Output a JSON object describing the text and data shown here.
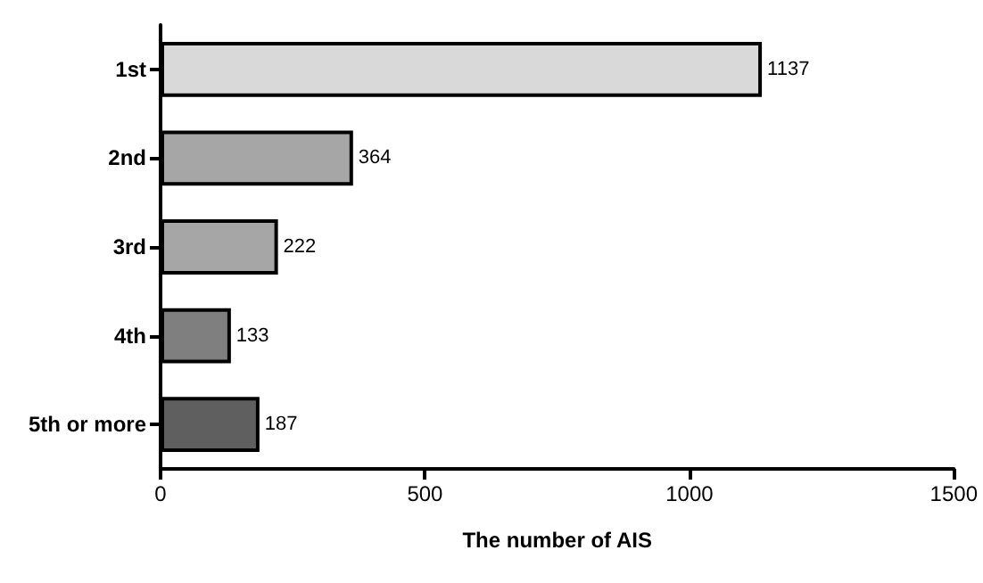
{
  "chart_data": {
    "type": "bar",
    "orientation": "horizontal",
    "xlabel": "The number of AIS",
    "categories": [
      "1st",
      "2nd",
      "3rd",
      "4th",
      "5th or more"
    ],
    "values": [
      1137,
      364,
      222,
      133,
      187
    ],
    "colors": [
      "#d9d9d9",
      "#a6a6a6",
      "#a6a6a6",
      "#7f7f7f",
      "#5f5f5f"
    ],
    "xlim": [
      0,
      1500
    ],
    "xticks": [
      0,
      500,
      1000,
      1500
    ],
    "grid": false,
    "data_labels": true
  }
}
